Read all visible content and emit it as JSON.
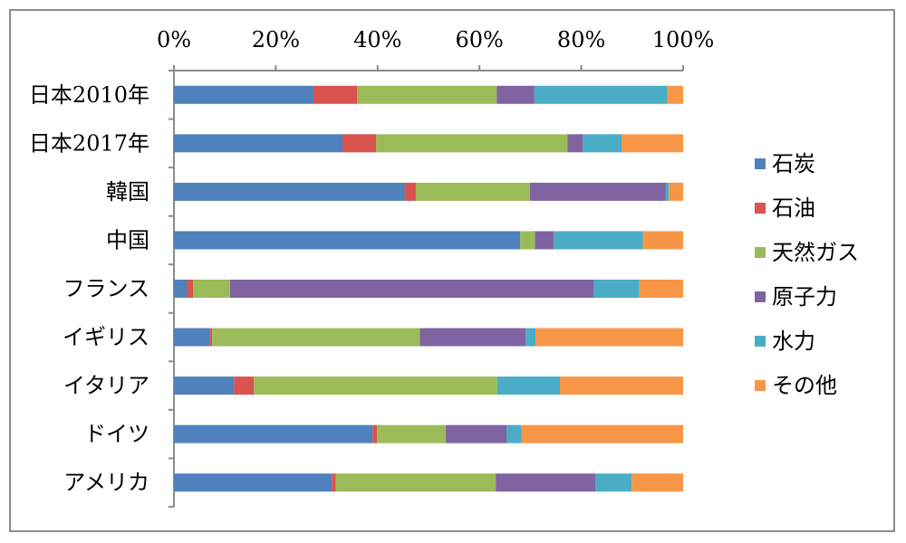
{
  "chart_data": {
    "type": "bar",
    "orientation": "horizontal",
    "stacked": "percent",
    "categories": [
      "日本2010年",
      "日本2017年",
      "韓国",
      "中国",
      "フランス",
      "イギリス",
      "イタリア",
      "ドイツ",
      "アメリカ"
    ],
    "xlim": [
      0,
      100
    ],
    "x_ticks": [
      "0%",
      "20%",
      "40%",
      "60%",
      "80%",
      "100%"
    ],
    "x_axis_position": "top",
    "grid": false,
    "legend_position": "right",
    "series": [
      {
        "name": "石炭",
        "color": "#4f81bd",
        "values": [
          27.4,
          33.1,
          45.3,
          68.0,
          2.5,
          7.0,
          11.8,
          39.0,
          31.0
        ]
      },
      {
        "name": "石油",
        "color": "#d9534f",
        "values": [
          8.6,
          6.6,
          2.2,
          0.0,
          1.3,
          0.5,
          3.9,
          0.9,
          0.8
        ]
      },
      {
        "name": "天然ガス",
        "color": "#9bbb59",
        "values": [
          27.4,
          37.6,
          22.4,
          2.9,
          7.2,
          40.8,
          47.8,
          13.5,
          31.4
        ]
      },
      {
        "name": "原子力",
        "color": "#8064a2",
        "values": [
          7.4,
          3.0,
          26.7,
          3.7,
          71.5,
          20.8,
          0.0,
          11.9,
          19.6
        ]
      },
      {
        "name": "水力",
        "color": "#4bacc6",
        "values": [
          26.1,
          7.6,
          0.6,
          17.5,
          8.9,
          1.9,
          12.3,
          3.0,
          7.1
        ]
      },
      {
        "name": "その他",
        "color": "#f79646",
        "values": [
          3.1,
          12.1,
          2.8,
          7.9,
          8.6,
          29.0,
          24.2,
          31.7,
          10.1
        ]
      }
    ]
  }
}
